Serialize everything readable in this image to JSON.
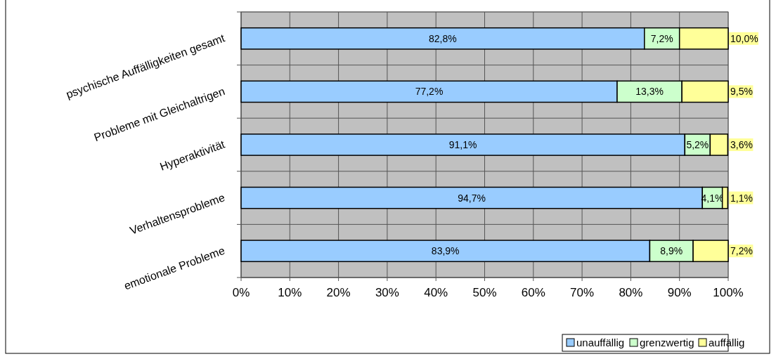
{
  "chart_data": {
    "type": "bar",
    "orientation": "horizontal",
    "stacked": true,
    "categories": [
      "psychische Auffälligkeiten gesamt",
      "Probleme mit Gleichaltrigen",
      "Hyperaktivität",
      "Verhaltensprobleme",
      "emotionale Probleme"
    ],
    "series": [
      {
        "name": "unauffällig",
        "color": "#99ccff",
        "values": [
          82.8,
          77.2,
          91.1,
          94.7,
          83.9
        ],
        "value_labels": [
          "82,8%",
          "77,2%",
          "91,1%",
          "94,7%",
          "83,9%"
        ]
      },
      {
        "name": "grenzwertig",
        "color": "#ccffcc",
        "values": [
          7.2,
          13.3,
          5.2,
          4.1,
          8.9
        ],
        "value_labels": [
          "7,2%",
          "13,3%",
          "5,2%",
          "4,1%",
          "8,9%"
        ]
      },
      {
        "name": "auffällig",
        "color": "#ffff99",
        "values": [
          10.0,
          9.5,
          3.6,
          1.1,
          7.2
        ],
        "value_labels": [
          "10,0%",
          "9,5%",
          "3,6%",
          "1,1%",
          "7,2%"
        ]
      }
    ],
    "xlim": [
      0,
      100
    ],
    "xticks": [
      {
        "value": 0,
        "label": "0%"
      },
      {
        "value": 10,
        "label": "10%"
      },
      {
        "value": 20,
        "label": "20%"
      },
      {
        "value": 30,
        "label": "30%"
      },
      {
        "value": 40,
        "label": "40%"
      },
      {
        "value": 50,
        "label": "50%"
      },
      {
        "value": 60,
        "label": "60%"
      },
      {
        "value": 70,
        "label": "70%"
      },
      {
        "value": 80,
        "label": "80%"
      },
      {
        "value": 90,
        "label": "90%"
      },
      {
        "value": 100,
        "label": "100%"
      }
    ],
    "grid": true,
    "legend": "bottom right"
  }
}
